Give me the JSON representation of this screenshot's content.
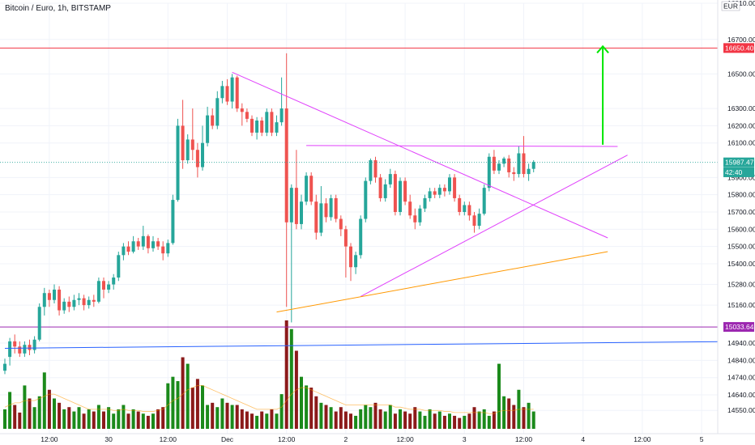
{
  "chart_data": {
    "type": "candlestick",
    "title": "Bitcoin / Euro, 1h, BITSTAMP",
    "currency": "EUR",
    "ylim": [
      14490,
      16910
    ],
    "y_ticks": [
      "16910.00",
      "16700.00",
      "16500.00",
      "16300.00",
      "16200.00",
      "16100.00",
      "15900.00",
      "15800.00",
      "15700.00",
      "15600.00",
      "15500.00",
      "15400.00",
      "15280.00",
      "15160.00",
      "14940.00",
      "14840.00",
      "14740.00",
      "14640.00",
      "14550.00"
    ],
    "x_ticks": [
      {
        "label": "12:00",
        "bar": 9
      },
      {
        "label": "30",
        "bar": 21
      },
      {
        "label": "12:00",
        "bar": 33
      },
      {
        "label": "Dec",
        "bar": 45
      },
      {
        "label": "12:00",
        "bar": 57
      },
      {
        "label": "2",
        "bar": 69
      },
      {
        "label": "12:00",
        "bar": 81
      },
      {
        "label": "3",
        "bar": 93
      },
      {
        "label": "12:00",
        "bar": 105
      },
      {
        "label": "4",
        "bar": 117
      },
      {
        "label": "12:00",
        "bar": 129
      },
      {
        "label": "5",
        "bar": 141
      }
    ],
    "price_tags": [
      {
        "label": "16650.40",
        "value": 16650.4,
        "color": "#f23645"
      },
      {
        "label": "15987.47",
        "value": 15987.47,
        "color": "#26a69a"
      },
      {
        "label": "42:40",
        "value": 15930,
        "color": "#26a69a"
      },
      {
        "label": "15033.64",
        "value": 15033.64,
        "color": "#9c27b0"
      }
    ],
    "hlines": [
      {
        "value": 16650.4,
        "color": "#f23645"
      },
      {
        "value": 15033.64,
        "color": "#9c27b0"
      }
    ],
    "drawings": [
      {
        "name": "descending-trendline",
        "color": "#e040fb",
        "from": [
          46,
          16510
        ],
        "to": [
          122,
          15550
        ]
      },
      {
        "name": "resistance-line",
        "color": "#e040fb",
        "from": [
          61,
          16085
        ],
        "to": [
          124,
          16080
        ]
      },
      {
        "name": "ascending-trendline",
        "color": "#e040fb",
        "from": [
          72,
          15210
        ],
        "to": [
          126,
          16030
        ]
      },
      {
        "name": "orange-trendline",
        "color": "#ff9800",
        "from": [
          55,
          15120
        ],
        "to": [
          122,
          15470
        ]
      },
      {
        "name": "blue-trendline",
        "color": "#2962ff",
        "from": [
          0,
          14910
        ],
        "to": [
          150,
          14950
        ]
      },
      {
        "name": "target-arrow",
        "color": "#00e600",
        "from": [
          121,
          16090
        ],
        "to": [
          121,
          16660
        ]
      }
    ],
    "candles": [
      [
        14780,
        14820,
        14760,
        14850
      ],
      [
        14860,
        14950,
        14810,
        14970
      ],
      [
        14950,
        14920,
        14880,
        14990
      ],
      [
        14920,
        14880,
        14860,
        14950
      ],
      [
        14880,
        14930,
        14860,
        14950
      ],
      [
        14930,
        14900,
        14870,
        14960
      ],
      [
        14900,
        14960,
        14880,
        14980
      ],
      [
        14960,
        15150,
        14950,
        15170
      ],
      [
        15150,
        15230,
        15100,
        15260
      ],
      [
        15230,
        15190,
        15150,
        15250
      ],
      [
        15190,
        15250,
        15170,
        15280
      ],
      [
        15250,
        15130,
        15100,
        15270
      ],
      [
        15130,
        15180,
        15110,
        15200
      ],
      [
        15180,
        15150,
        15120,
        15210
      ],
      [
        15150,
        15190,
        15130,
        15220
      ],
      [
        15190,
        15200,
        15160,
        15230
      ],
      [
        15200,
        15160,
        15130,
        15220
      ],
      [
        15160,
        15190,
        15140,
        15210
      ],
      [
        15190,
        15180,
        15150,
        15220
      ],
      [
        15180,
        15300,
        15170,
        15320
      ],
      [
        15300,
        15250,
        15200,
        15320
      ],
      [
        15250,
        15280,
        15230,
        15300
      ],
      [
        15280,
        15320,
        15250,
        15340
      ],
      [
        15320,
        15450,
        15300,
        15470
      ],
      [
        15450,
        15500,
        15420,
        15520
      ],
      [
        15500,
        15470,
        15450,
        15530
      ],
      [
        15470,
        15530,
        15460,
        15560
      ],
      [
        15530,
        15500,
        15480,
        15550
      ],
      [
        15500,
        15560,
        15480,
        15620
      ],
      [
        15560,
        15490,
        15460,
        15570
      ],
      [
        15490,
        15530,
        15470,
        15560
      ],
      [
        15530,
        15500,
        15480,
        15550
      ],
      [
        15500,
        15460,
        15420,
        15530
      ],
      [
        15460,
        15520,
        15440,
        15540
      ],
      [
        15520,
        15770,
        15510,
        15800
      ],
      [
        15770,
        16200,
        15760,
        16240
      ],
      [
        16200,
        16000,
        15950,
        16350
      ],
      [
        16000,
        16120,
        15980,
        16150
      ],
      [
        16120,
        16060,
        16000,
        16300
      ],
      [
        16060,
        15960,
        15900,
        16100
      ],
      [
        15960,
        16100,
        15940,
        16200
      ],
      [
        16100,
        16260,
        16080,
        16310
      ],
      [
        16260,
        16200,
        16180,
        16300
      ],
      [
        16200,
        16360,
        16180,
        16400
      ],
      [
        16360,
        16430,
        16330,
        16460
      ],
      [
        16430,
        16340,
        16320,
        16470
      ],
      [
        16340,
        16480,
        16300,
        16500
      ],
      [
        16480,
        16300,
        16280,
        16490
      ],
      [
        16300,
        16280,
        16200,
        16330
      ],
      [
        16280,
        16240,
        16220,
        16300
      ],
      [
        16240,
        16160,
        16140,
        16260
      ],
      [
        16160,
        16230,
        16120,
        16250
      ],
      [
        16230,
        16160,
        16140,
        16250
      ],
      [
        16160,
        16280,
        16140,
        16300
      ],
      [
        16280,
        16160,
        16140,
        16300
      ],
      [
        16160,
        16220,
        16140,
        16260
      ],
      [
        16220,
        16300,
        16200,
        16480
      ],
      [
        16300,
        15640,
        15150,
        16620
      ],
      [
        15640,
        15840,
        15060,
        15860
      ],
      [
        15840,
        15630,
        15600,
        16060
      ],
      [
        15630,
        15760,
        15600,
        15800
      ],
      [
        15760,
        15910,
        15740,
        15930
      ],
      [
        15910,
        15760,
        15740,
        15930
      ],
      [
        15760,
        15580,
        15540,
        15800
      ],
      [
        15580,
        15750,
        15560,
        15850
      ],
      [
        15750,
        15670,
        15640,
        15780
      ],
      [
        15670,
        15780,
        15650,
        15800
      ],
      [
        15780,
        15660,
        15640,
        15800
      ],
      [
        15660,
        15600,
        15560,
        15680
      ],
      [
        15600,
        15500,
        15320,
        15620
      ],
      [
        15500,
        15380,
        15300,
        15520
      ],
      [
        15380,
        15450,
        15340,
        15470
      ],
      [
        15450,
        15660,
        15430,
        15680
      ],
      [
        15660,
        15880,
        15640,
        15900
      ],
      [
        15880,
        16000,
        15860,
        16010
      ],
      [
        16000,
        15900,
        15870,
        16020
      ],
      [
        15900,
        15780,
        15760,
        15920
      ],
      [
        15780,
        15860,
        15760,
        15890
      ],
      [
        15860,
        15920,
        15840,
        15950
      ],
      [
        15920,
        15700,
        15680,
        15940
      ],
      [
        15700,
        15880,
        15680,
        15900
      ],
      [
        15880,
        15760,
        15740,
        15900
      ],
      [
        15760,
        15680,
        15660,
        15800
      ],
      [
        15680,
        15640,
        15600,
        15720
      ],
      [
        15640,
        15720,
        15620,
        15740
      ],
      [
        15720,
        15780,
        15700,
        15800
      ],
      [
        15780,
        15820,
        15760,
        15840
      ],
      [
        15820,
        15800,
        15780,
        15840
      ],
      [
        15800,
        15840,
        15780,
        15860
      ],
      [
        15840,
        15820,
        15790,
        15860
      ],
      [
        15820,
        15900,
        15800,
        15920
      ],
      [
        15900,
        15780,
        15760,
        15920
      ],
      [
        15780,
        15700,
        15680,
        15800
      ],
      [
        15700,
        15740,
        15680,
        15760
      ],
      [
        15740,
        15680,
        15650,
        15760
      ],
      [
        15680,
        15620,
        15580,
        15700
      ],
      [
        15620,
        15690,
        15600,
        15720
      ],
      [
        15690,
        15840,
        15680,
        15860
      ],
      [
        15840,
        16020,
        15820,
        16040
      ],
      [
        16020,
        15940,
        15920,
        16060
      ],
      [
        15940,
        15980,
        15920,
        16000
      ],
      [
        15980,
        16010,
        15960,
        16020
      ],
      [
        16010,
        15930,
        15900,
        16030
      ],
      [
        15930,
        15920,
        15880,
        15960
      ],
      [
        15920,
        16040,
        15900,
        16080
      ],
      [
        16040,
        15920,
        15900,
        16140
      ],
      [
        15920,
        15950,
        15880,
        15980
      ],
      [
        15950,
        15990,
        15930,
        16000
      ]
    ],
    "volumes": [
      18,
      34,
      22,
      15,
      40,
      28,
      20,
      30,
      52,
      36,
      28,
      24,
      18,
      20,
      16,
      20,
      14,
      18,
      16,
      22,
      16,
      20,
      14,
      18,
      22,
      14,
      18,
      16,
      14,
      12,
      14,
      18,
      20,
      42,
      48,
      44,
      66,
      60,
      38,
      46,
      40,
      22,
      24,
      20,
      28,
      24,
      22,
      22,
      18,
      16,
      14,
      12,
      16,
      14,
      18,
      14,
      32,
      100,
      92,
      72,
      48,
      40,
      38,
      30,
      24,
      22,
      20,
      16,
      20,
      16,
      14,
      12,
      18,
      22,
      20,
      24,
      18,
      16,
      22,
      14,
      18,
      16,
      14,
      20,
      16,
      12,
      18,
      14,
      16,
      12,
      14,
      12,
      10,
      12,
      14,
      20,
      16,
      18,
      12,
      16,
      60,
      30,
      28,
      22,
      36,
      20,
      24,
      16
    ],
    "volume_ma": [
      20,
      22,
      24,
      24,
      26,
      26,
      26,
      28,
      30,
      32,
      32,
      30,
      28,
      26,
      24,
      22,
      20,
      18,
      18,
      18,
      18,
      18,
      17,
      17,
      18,
      17,
      17,
      17,
      16,
      16,
      16,
      17,
      18,
      22,
      26,
      28,
      32,
      36,
      38,
      40,
      40,
      38,
      36,
      34,
      32,
      30,
      28,
      26,
      24,
      22,
      20,
      18,
      18,
      18,
      18,
      18,
      20,
      26,
      32,
      36,
      38,
      38,
      36,
      34,
      32,
      30,
      28,
      26,
      24,
      22,
      22,
      22,
      22,
      22,
      22,
      22,
      22,
      22,
      22,
      20,
      20,
      19,
      18,
      18,
      18,
      17,
      17,
      17,
      17,
      16,
      16,
      15,
      15,
      15,
      15,
      15,
      15,
      15,
      14,
      14,
      16,
      17,
      17,
      17,
      18,
      18,
      18,
      18
    ],
    "colors": {
      "up": "#26a69a",
      "down": "#ef5350",
      "vol_up": "#1b8a1b",
      "vol_down": "#8b1a1a",
      "vol_ma": "#ff9800"
    }
  }
}
